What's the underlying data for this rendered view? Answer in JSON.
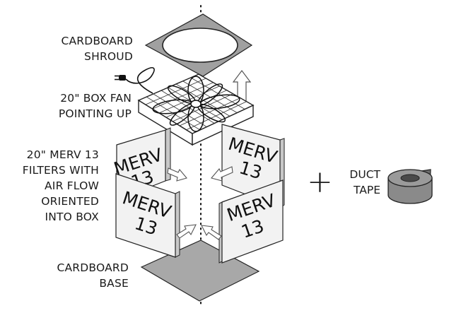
{
  "labels": {
    "shroud": [
      "CARDBOARD",
      "SHROUD"
    ],
    "fan": [
      "20\" BOX FAN",
      "POINTING UP"
    ],
    "filters": [
      "20\" MERV 13",
      "FILTERS WITH",
      "AIR FLOW",
      "ORIENTED",
      "INTO BOX"
    ],
    "base": [
      "CARDBOARD",
      "BASE"
    ],
    "duct_tape": [
      "DUCT",
      "TAPE"
    ]
  },
  "filter_text": {
    "line1": "MERV",
    "line2": "13"
  },
  "plus_symbol": "+",
  "colors": {
    "shroud_fill": "#a0a0a0",
    "base_fill": "#a8a8a8",
    "filter_face": "#f2f2f2",
    "filter_edge": "#c8c8c8",
    "tape_fill": "#8a8a8a",
    "tape_dark": "#4a4a4a",
    "outline": "#222222"
  },
  "icons": [
    "fan-blade-icon",
    "power-plug-icon",
    "airflow-arrow-icon",
    "duct-tape-roll-icon"
  ]
}
